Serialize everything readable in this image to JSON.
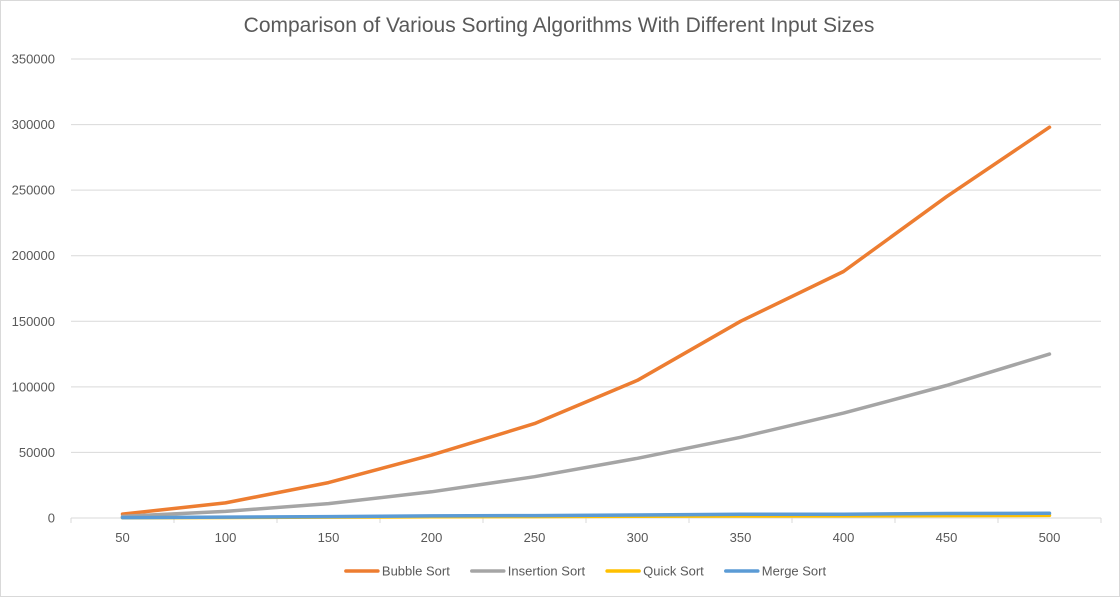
{
  "chart_data": {
    "type": "line",
    "title": "Comparison of Various Sorting Algorithms With Different Input Sizes",
    "xlabel": "",
    "ylabel": "",
    "categories": [
      "50",
      "100",
      "150",
      "200",
      "250",
      "300",
      "350",
      "400",
      "450",
      "500"
    ],
    "ylim": [
      0,
      350000
    ],
    "yticks": [
      "0",
      "50000",
      "100000",
      "150000",
      "200000",
      "250000",
      "300000",
      "350000"
    ],
    "grid": true,
    "legend_position": "bottom",
    "series": [
      {
        "name": "Bubble Sort",
        "color": "#ED7D31",
        "values": [
          3000,
          11500,
          27000,
          48000,
          72000,
          105000,
          150000,
          188000,
          245000,
          298000
        ]
      },
      {
        "name": "Insertion Sort",
        "color": "#A5A5A5",
        "values": [
          1250,
          5000,
          11000,
          20000,
          31500,
          45500,
          61500,
          80000,
          101000,
          125000
        ]
      },
      {
        "name": "Quick Sort",
        "color": "#FFC000",
        "values": [
          200,
          400,
          700,
          900,
          1100,
          1300,
          1500,
          1600,
          1800,
          2000
        ]
      },
      {
        "name": "Merge Sort",
        "color": "#5B9BD5",
        "values": [
          300,
          700,
          1100,
          1600,
          1800,
          2300,
          2900,
          2900,
          3400,
          3600
        ]
      }
    ]
  }
}
